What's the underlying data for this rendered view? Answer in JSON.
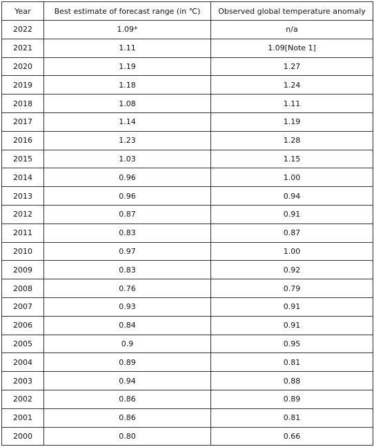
{
  "table": {
    "header": [
      "Year",
      "Best estimate of forecast range  (in ℃)",
      "Observed global temperature anomaly"
    ],
    "rows": [
      [
        "2022",
        "1.09*",
        "n/a"
      ],
      [
        "2021",
        "1.11",
        "1.09[Note 1]"
      ],
      [
        "2020",
        "1.19",
        "1.27"
      ],
      [
        "2019",
        "1.18",
        "1.24"
      ],
      [
        "2018",
        "1.08",
        "1.11"
      ],
      [
        "2017",
        "1.14",
        "1.19"
      ],
      [
        "2016",
        "1.23",
        "1.28"
      ],
      [
        "2015",
        "1.03",
        "1.15"
      ],
      [
        "2014",
        "0.96",
        "1.00"
      ],
      [
        "2013",
        "0.96",
        "0.94"
      ],
      [
        "2012",
        "0.87",
        "0.91"
      ],
      [
        "2011",
        "0.83",
        "0.87"
      ],
      [
        "2010",
        "0.97",
        "1.00"
      ],
      [
        "2009",
        "0.83",
        "0.92"
      ],
      [
        "2008",
        "0.76",
        "0.79"
      ],
      [
        "2007",
        "0.93",
        "0.91"
      ],
      [
        "2006",
        "0.84",
        "0.91"
      ],
      [
        "2005",
        "0.9",
        "0.95"
      ],
      [
        "2004",
        "0.89",
        "0.81"
      ],
      [
        "2003",
        "0.94",
        "0.88"
      ],
      [
        "2002",
        "0.86",
        "0.89"
      ],
      [
        "2001",
        "0.86",
        "0.81"
      ],
      [
        "2000",
        "0.80",
        "0.66"
      ]
    ]
  }
}
